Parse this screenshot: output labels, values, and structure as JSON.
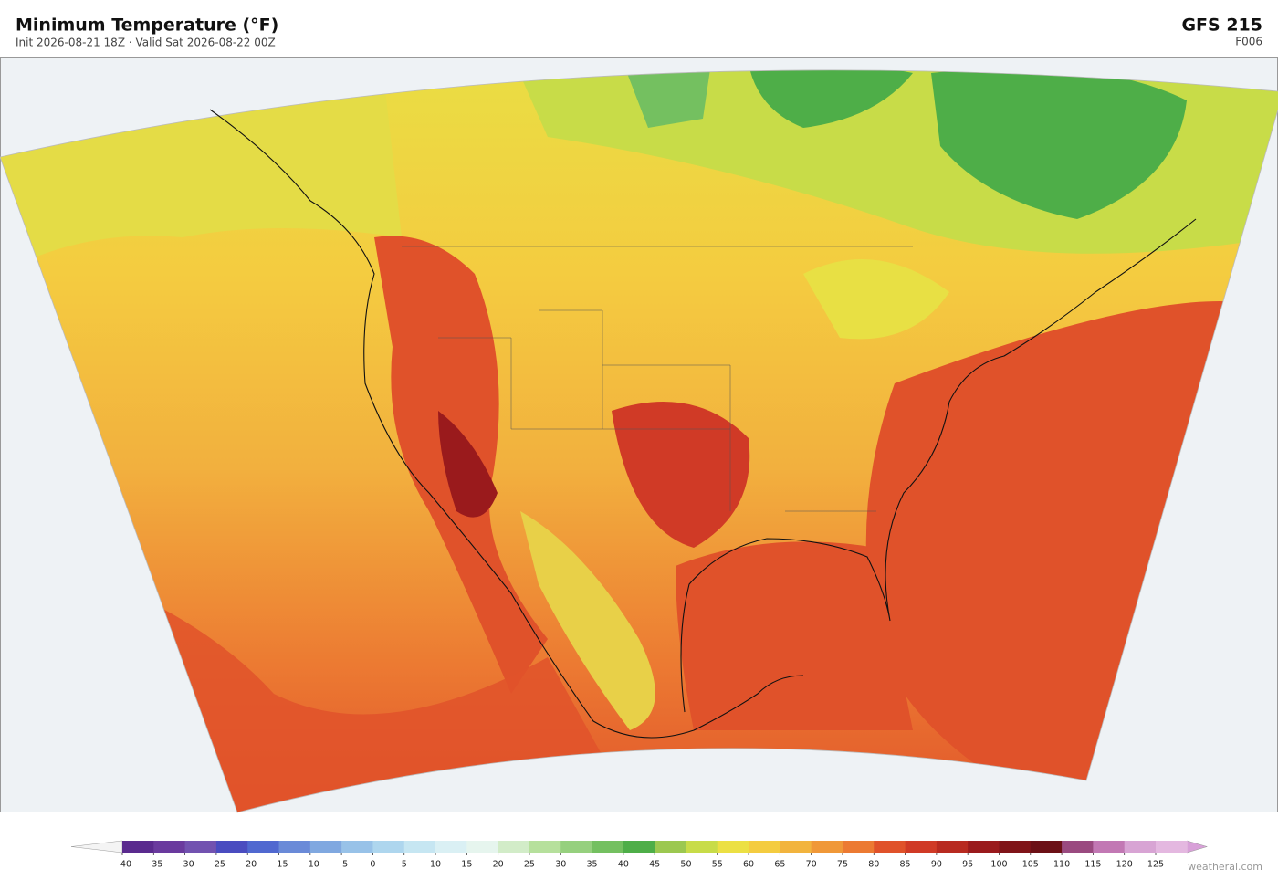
{
  "header": {
    "title": "Minimum Temperature  (°F)",
    "subtitle": "Init 2026-08-21 18Z  ·  Valid Sat 2026-08-22 00Z",
    "model": "GFS  215",
    "forecast_hour": "F006"
  },
  "colorbar": {
    "ticks": [
      {
        "value": -40,
        "label": "−40"
      },
      {
        "value": -35,
        "label": "−35"
      },
      {
        "value": -30,
        "label": "−30"
      },
      {
        "value": -25,
        "label": "−25"
      },
      {
        "value": -20,
        "label": "−20"
      },
      {
        "value": -15,
        "label": "−15"
      },
      {
        "value": -10,
        "label": "−10"
      },
      {
        "value": -5,
        "label": "−5"
      },
      0,
      5,
      10,
      15,
      20,
      25,
      30,
      35,
      40,
      45,
      50,
      55,
      60,
      65,
      70,
      75,
      80,
      85,
      90,
      95,
      100,
      105,
      110,
      115,
      120,
      125
    ],
    "colors": [
      "#5a2a8e",
      "#6a3a9e",
      "#7252b0",
      "#4a4cc0",
      "#5068d0",
      "#6a8ad8",
      "#80a8e0",
      "#98c2e8",
      "#aed6ee",
      "#c6e6f2",
      "#daf0f4",
      "#e6f5ee",
      "#d2ecc8",
      "#b6e09c",
      "#96d07e",
      "#74c060",
      "#4eae48",
      "#9cc850",
      "#c8dc48",
      "#ece044",
      "#f4cc40",
      "#f2b43e",
      "#f09838",
      "#ec7a32",
      "#e0522a",
      "#d03a26",
      "#b82a20",
      "#9a1a1c",
      "#801418",
      "#6c1016",
      "#9a4a80",
      "#c278b4",
      "#d8a4d4",
      "#e4b8e0"
    ],
    "under_color": "#f4f4f4",
    "over_color": "#d8a0d8"
  },
  "watermark": "weatherai.com"
}
